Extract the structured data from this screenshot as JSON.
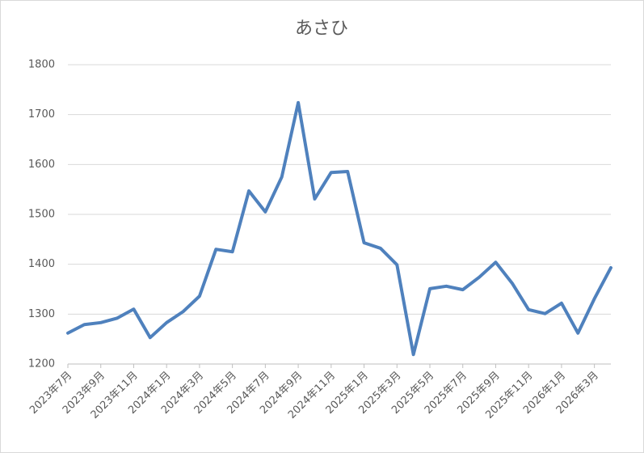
{
  "chart_data": {
    "type": "line",
    "title": "あさひ",
    "categories": [
      "2023年7月",
      null,
      "2023年9月",
      null,
      "2023年11月",
      null,
      "2024年1月",
      null,
      "2024年3月",
      null,
      "2024年5月",
      null,
      "2024年7月",
      null,
      "2024年9月",
      null,
      "2024年11月",
      null,
      "2025年1月",
      null,
      "2025年3月",
      null,
      "2025年5月",
      null,
      "2025年7月",
      null,
      "2025年9月",
      null,
      "2025年11月",
      null,
      "2026年1月",
      null,
      "2026年3月",
      null
    ],
    "series": [
      {
        "name": "あさひ",
        "color": "#4f81bd",
        "values": [
          1262,
          1279,
          1283,
          1292,
          1310,
          1253,
          1283,
          1305,
          1336,
          1430,
          1425,
          1547,
          1505,
          1575,
          1724,
          1531,
          1584,
          1586,
          1443,
          1432,
          1399,
          1219,
          1351,
          1356,
          1349,
          1374,
          1404,
          1362,
          1309,
          1301,
          1322,
          1262,
          1331,
          1393
        ]
      }
    ],
    "ylim": [
      1200,
      1800
    ],
    "yticks": [
      1200,
      1300,
      1400,
      1500,
      1600,
      1700,
      1800
    ],
    "grid": true
  }
}
